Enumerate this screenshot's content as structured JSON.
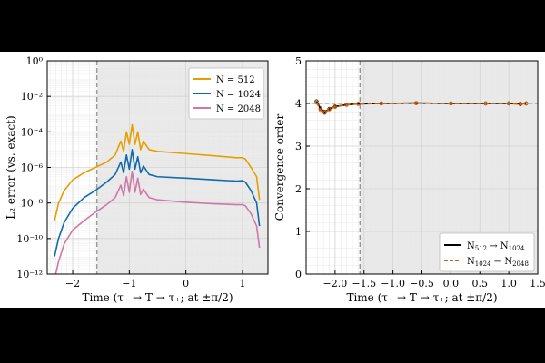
{
  "chart_data": [
    {
      "type": "line",
      "xlabel": "Time (τ₋ → T → τ₊; at ±π/2)",
      "ylabel": "L₂ error (vs. exact)",
      "yscale": "log",
      "xlim": [
        -2.45,
        1.45
      ],
      "ylim": [
        1e-12,
        1
      ],
      "xticks": [
        -2,
        -1,
        0,
        1
      ],
      "xtick_labels": [
        "−2",
        "−1",
        "0",
        "1"
      ],
      "yticks": [
        1e-12,
        1e-10,
        1e-08,
        1e-06,
        0.0001,
        0.01,
        1
      ],
      "ytick_labels": [
        "10⁻¹²",
        "10⁻¹⁰",
        "10⁻⁸",
        "10⁻⁶",
        "10⁻⁴",
        "10⁻²",
        "10⁰"
      ],
      "grid": true,
      "shaded_region": [
        -1.571,
        1.45
      ],
      "vline": -1.571,
      "legend_position": "top-right",
      "series": [
        {
          "name": "N = 512",
          "color": "#E69F00",
          "points": [
            [
              -2.32,
              1e-09
            ],
            [
              -2.25,
              1e-08
            ],
            [
              -2.15,
              5e-08
            ],
            [
              -2.0,
              2e-07
            ],
            [
              -1.8,
              5e-07
            ],
            [
              -1.6,
              1e-06
            ],
            [
              -1.4,
              2e-06
            ],
            [
              -1.25,
              5e-06
            ],
            [
              -1.15,
              3e-05
            ],
            [
              -1.1,
              8e-06
            ],
            [
              -1.05,
              0.0001
            ],
            [
              -1.0,
              2e-05
            ],
            [
              -0.95,
              0.00025
            ],
            [
              -0.9,
              2e-05
            ],
            [
              -0.85,
              0.0001
            ],
            [
              -0.8,
              1e-05
            ],
            [
              -0.75,
              3e-05
            ],
            [
              -0.65,
              1e-05
            ],
            [
              -0.5,
              8e-06
            ],
            [
              0.0,
              6e-06
            ],
            [
              0.5,
              4.5e-06
            ],
            [
              0.9,
              3.5e-06
            ],
            [
              1.0,
              3.5e-06
            ],
            [
              1.05,
              3e-06
            ],
            [
              1.15,
              1e-06
            ],
            [
              1.25,
              3e-07
            ],
            [
              1.3,
              1.5e-08
            ]
          ]
        },
        {
          "name": "N = 1024",
          "color": "#0F6CA8",
          "points": [
            [
              -2.32,
              1e-11
            ],
            [
              -2.25,
              1e-10
            ],
            [
              -2.15,
              8e-10
            ],
            [
              -2.0,
              5e-09
            ],
            [
              -1.8,
              2e-08
            ],
            [
              -1.6,
              5e-08
            ],
            [
              -1.4,
              1.5e-07
            ],
            [
              -1.25,
              4e-07
            ],
            [
              -1.15,
              2e-06
            ],
            [
              -1.1,
              5e-07
            ],
            [
              -1.05,
              5e-06
            ],
            [
              -1.0,
              8e-07
            ],
            [
              -0.95,
              1e-05
            ],
            [
              -0.9,
              8e-07
            ],
            [
              -0.85,
              4e-06
            ],
            [
              -0.8,
              5e-07
            ],
            [
              -0.75,
              1.2e-06
            ],
            [
              -0.65,
              4e-07
            ],
            [
              -0.5,
              3e-07
            ],
            [
              0.0,
              2.5e-07
            ],
            [
              0.5,
              2e-07
            ],
            [
              0.9,
              1.7e-07
            ],
            [
              1.0,
              1.8e-07
            ],
            [
              1.05,
              1.5e-07
            ],
            [
              1.15,
              5e-08
            ],
            [
              1.25,
              1e-08
            ],
            [
              1.3,
              5e-10
            ]
          ]
        },
        {
          "name": "N = 2048",
          "color": "#CC79A7",
          "points": [
            [
              -2.3,
              1e-12
            ],
            [
              -2.25,
              5e-12
            ],
            [
              -2.15,
              5e-11
            ],
            [
              -2.0,
              3e-10
            ],
            [
              -1.8,
              1e-09
            ],
            [
              -1.6,
              3e-09
            ],
            [
              -1.4,
              8e-09
            ],
            [
              -1.25,
              2e-08
            ],
            [
              -1.15,
              1e-07
            ],
            [
              -1.1,
              2.5e-08
            ],
            [
              -1.05,
              3e-07
            ],
            [
              -1.0,
              4e-08
            ],
            [
              -0.95,
              6e-07
            ],
            [
              -0.9,
              4e-08
            ],
            [
              -0.85,
              2.5e-07
            ],
            [
              -0.8,
              3e-08
            ],
            [
              -0.75,
              6e-08
            ],
            [
              -0.65,
              2e-08
            ],
            [
              -0.5,
              1.5e-08
            ],
            [
              0.0,
              1.1e-08
            ],
            [
              0.5,
              9e-09
            ],
            [
              0.9,
              8e-09
            ],
            [
              1.0,
              8e-09
            ],
            [
              1.05,
              7e-09
            ],
            [
              1.15,
              2.5e-09
            ],
            [
              1.25,
              5e-10
            ],
            [
              1.3,
              3e-11
            ]
          ]
        }
      ]
    },
    {
      "type": "line",
      "xlabel": "Time (τ₋ → T → τ₊; at ±π/2)",
      "ylabel": "Convergence order",
      "xlim": [
        -2.5,
        1.5
      ],
      "ylim": [
        0,
        5
      ],
      "xticks": [
        -2.0,
        -1.5,
        -1.0,
        -0.5,
        0.0,
        0.5,
        1.0,
        1.5
      ],
      "xtick_labels": [
        "−2.0",
        "−1.5",
        "−1.0",
        "−0.5",
        "0.0",
        "0.5",
        "1.0",
        "1.5"
      ],
      "yticks": [
        0,
        1,
        2,
        3,
        4,
        5
      ],
      "ytick_labels": [
        "0",
        "1",
        "2",
        "3",
        "4",
        "5"
      ],
      "grid": true,
      "shaded_region": [
        -1.571,
        1.5
      ],
      "vline": -1.571,
      "hline": 4,
      "legend_position": "bottom-right",
      "series": [
        {
          "name": "N512 → N1024",
          "label_main": "N",
          "label_sub1": "512",
          "label_arrow": " → N",
          "label_sub2": "1024",
          "color": "#000000",
          "dash": "solid",
          "points": [
            [
              -2.32,
              4.05
            ],
            [
              -2.25,
              3.88
            ],
            [
              -2.18,
              3.8
            ],
            [
              -2.1,
              3.87
            ],
            [
              -2.0,
              3.93
            ],
            [
              -1.8,
              3.97
            ],
            [
              -1.6,
              3.99
            ],
            [
              -1.2,
              4.0
            ],
            [
              -0.6,
              4.01
            ],
            [
              0.0,
              4.0
            ],
            [
              0.6,
              4.0
            ],
            [
              1.0,
              4.0
            ],
            [
              1.2,
              3.99
            ],
            [
              1.3,
              4.0
            ]
          ]
        },
        {
          "name": "N1024 → N2048",
          "label_main": "N",
          "label_sub1": "1024",
          "label_arrow": " → N",
          "label_sub2": "2048",
          "color": "#D55E00",
          "dash": "dashed",
          "points": [
            [
              -2.32,
              4.02
            ],
            [
              -2.25,
              3.85
            ],
            [
              -2.18,
              3.78
            ],
            [
              -2.1,
              3.86
            ],
            [
              -2.0,
              3.92
            ],
            [
              -1.8,
              3.97
            ],
            [
              -1.6,
              3.99
            ],
            [
              -1.2,
              4.0
            ],
            [
              -0.6,
              4.01
            ],
            [
              0.0,
              4.0
            ],
            [
              0.6,
              4.0
            ],
            [
              1.0,
              4.0
            ],
            [
              1.2,
              3.98
            ],
            [
              1.3,
              4.0
            ]
          ]
        }
      ]
    }
  ]
}
